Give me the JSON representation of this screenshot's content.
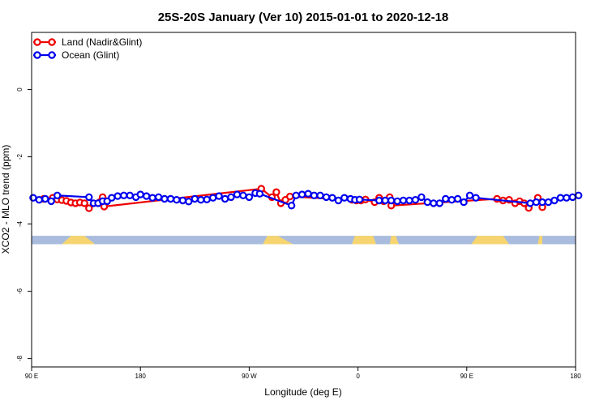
{
  "chart_data": {
    "type": "line",
    "title": "25S-20S January (Ver 10)   2015-01-01 to 2020-12-18",
    "xlabel": "Longitude (deg E)",
    "ylabel": "XCO2 - MLO trend (ppm)",
    "xlim": [
      90,
      450
    ],
    "ylim": [
      -8.25,
      1.7
    ],
    "x_ticks": [
      {
        "value": 90,
        "label": "90 E"
      },
      {
        "value": 162,
        "label": "180"
      },
      {
        "value": 234,
        "label": "90 W"
      },
      {
        "value": 306,
        "label": "0"
      },
      {
        "value": 378,
        "label": "90 E"
      },
      {
        "value": 450,
        "label": "180"
      }
    ],
    "y_ticks": [
      {
        "value": 0,
        "label": "0"
      },
      {
        "value": -2,
        "label": "-2"
      },
      {
        "value": -4,
        "label": "-4"
      },
      {
        "value": -6,
        "label": "-6"
      },
      {
        "value": -8,
        "label": "-8"
      }
    ],
    "land_mask": {
      "y_bottom": -4.6,
      "y_top": -4.35,
      "ocean_color": "#A9BCDD",
      "land_color": "#F6D571",
      "land_segments": [
        [
          110,
          116,
          125,
          132
        ],
        [
          243,
          246,
          253,
          263
        ],
        [
          302,
          304,
          316,
          318
        ],
        [
          327,
          328,
          331,
          333
        ],
        [
          381,
          385,
          402,
          406
        ],
        [
          425,
          426,
          428,
          428
        ]
      ]
    },
    "series": [
      {
        "name": "Land (Nadir&Glint)",
        "color": "#EE0000",
        "points": [
          [
            98,
            -3.25
          ],
          [
            104,
            -3.22
          ],
          [
            107,
            -3.27
          ],
          [
            110,
            -3.29
          ],
          [
            113,
            -3.31
          ],
          [
            116,
            -3.36
          ],
          [
            119,
            -3.38
          ],
          [
            122,
            -3.36
          ],
          [
            125,
            -3.38
          ],
          [
            128,
            -3.53
          ],
          [
            135,
            -3.35
          ],
          [
            137,
            -3.2
          ],
          [
            138,
            -3.48
          ],
          [
            242,
            -2.95
          ],
          [
            249,
            -3.2
          ],
          [
            252,
            -3.05
          ],
          [
            255,
            -3.38
          ],
          [
            258,
            -3.28
          ],
          [
            261,
            -3.18
          ],
          [
            302,
            -3.28
          ],
          [
            305,
            -3.3
          ],
          [
            308,
            -3.3
          ],
          [
            311,
            -3.27
          ],
          [
            317,
            -3.35
          ],
          [
            320,
            -3.22
          ],
          [
            323,
            -3.32
          ],
          [
            327,
            -3.2
          ],
          [
            328,
            -3.45
          ],
          [
            398,
            -3.25
          ],
          [
            402,
            -3.3
          ],
          [
            406,
            -3.28
          ],
          [
            410,
            -3.38
          ],
          [
            413,
            -3.32
          ],
          [
            416,
            -3.38
          ],
          [
            419,
            -3.52
          ],
          [
            425,
            -3.22
          ],
          [
            428,
            -3.5
          ]
        ]
      },
      {
        "name": "Ocean (Glint)",
        "color": "#0000EE",
        "points": [
          [
            91,
            -3.22
          ],
          [
            95,
            -3.28
          ],
          [
            99,
            -3.25
          ],
          [
            103,
            -3.32
          ],
          [
            107,
            -3.15
          ],
          [
            128,
            -3.2
          ],
          [
            131,
            -3.38
          ],
          [
            134,
            -3.38
          ],
          [
            137,
            -3.32
          ],
          [
            140,
            -3.32
          ],
          [
            143,
            -3.22
          ],
          [
            147,
            -3.17
          ],
          [
            151,
            -3.15
          ],
          [
            155,
            -3.15
          ],
          [
            159,
            -3.2
          ],
          [
            162,
            -3.12
          ],
          [
            166,
            -3.17
          ],
          [
            170,
            -3.22
          ],
          [
            174,
            -3.2
          ],
          [
            178,
            -3.25
          ],
          [
            182,
            -3.25
          ],
          [
            186,
            -3.28
          ],
          [
            190,
            -3.3
          ],
          [
            194,
            -3.33
          ],
          [
            198,
            -3.25
          ],
          [
            202,
            -3.28
          ],
          [
            206,
            -3.27
          ],
          [
            210,
            -3.22
          ],
          [
            214,
            -3.17
          ],
          [
            218,
            -3.25
          ],
          [
            222,
            -3.2
          ],
          [
            226,
            -3.12
          ],
          [
            230,
            -3.15
          ],
          [
            234,
            -3.2
          ],
          [
            238,
            -3.08
          ],
          [
            241,
            -3.1
          ],
          [
            262,
            -3.45
          ],
          [
            265,
            -3.15
          ],
          [
            269,
            -3.12
          ],
          [
            273,
            -3.1
          ],
          [
            277,
            -3.15
          ],
          [
            281,
            -3.15
          ],
          [
            285,
            -3.2
          ],
          [
            289,
            -3.22
          ],
          [
            293,
            -3.3
          ],
          [
            297,
            -3.22
          ],
          [
            301,
            -3.25
          ],
          [
            304,
            -3.28
          ],
          [
            307,
            -3.27
          ],
          [
            320,
            -3.3
          ],
          [
            324,
            -3.3
          ],
          [
            328,
            -3.3
          ],
          [
            332,
            -3.32
          ],
          [
            336,
            -3.3
          ],
          [
            340,
            -3.3
          ],
          [
            344,
            -3.28
          ],
          [
            348,
            -3.2
          ],
          [
            352,
            -3.35
          ],
          [
            356,
            -3.38
          ],
          [
            360,
            -3.38
          ],
          [
            364,
            -3.25
          ],
          [
            368,
            -3.28
          ],
          [
            372,
            -3.25
          ],
          [
            376,
            -3.35
          ],
          [
            380,
            -3.15
          ],
          [
            384,
            -3.22
          ],
          [
            420,
            -3.38
          ],
          [
            424,
            -3.35
          ],
          [
            428,
            -3.35
          ],
          [
            432,
            -3.35
          ],
          [
            436,
            -3.3
          ],
          [
            440,
            -3.22
          ],
          [
            444,
            -3.22
          ],
          [
            448,
            -3.2
          ],
          [
            452,
            -3.15
          ]
        ]
      }
    ]
  }
}
